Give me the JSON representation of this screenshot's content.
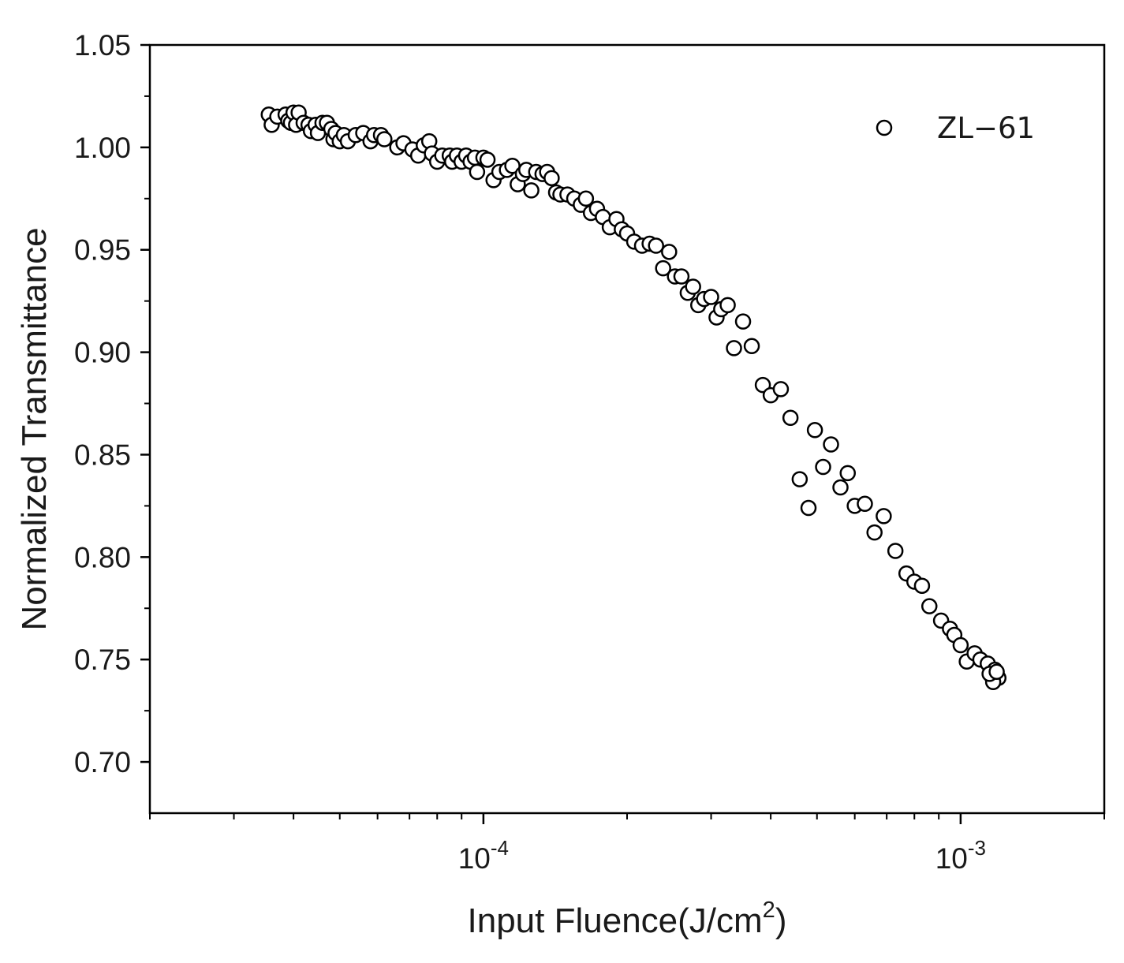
{
  "chart_data": {
    "type": "scatter",
    "xscale": "log",
    "xlim": [
      2e-05,
      0.002
    ],
    "ylim": [
      0.675,
      1.05
    ],
    "xlabel_main": "Input Fluence(J/cm",
    "xlabel_sup": "2",
    "xlabel_end": ")",
    "ylabel": "Normalized Transmittance",
    "y_ticks": [
      "0.70",
      "0.75",
      "0.80",
      "0.85",
      "0.90",
      "0.95",
      "1.00",
      "1.05"
    ],
    "y_tick_values": [
      0.7,
      0.75,
      0.8,
      0.85,
      0.9,
      0.95,
      1.0,
      1.05
    ],
    "x_ticks": [
      {
        "value": 0.0001,
        "base": "10",
        "exp": "-4"
      },
      {
        "value": 0.001,
        "base": "10",
        "exp": "-3"
      }
    ],
    "grid": false,
    "legend_position": "top-right",
    "marker": "open-circle",
    "series": [
      {
        "name": "ZL−61",
        "color": "#000000",
        "points": [
          [
            3.55e-05,
            1.016
          ],
          [
            3.6e-05,
            1.011
          ],
          [
            3.7e-05,
            1.015
          ],
          [
            3.85e-05,
            1.016
          ],
          [
            3.9e-05,
            1.013
          ],
          [
            3.95e-05,
            1.012
          ],
          [
            4e-05,
            1.017
          ],
          [
            4.05e-05,
            1.011
          ],
          [
            4.1e-05,
            1.017
          ],
          [
            4.2e-05,
            1.012
          ],
          [
            4.3e-05,
            1.011
          ],
          [
            4.35e-05,
            1.008
          ],
          [
            4.45e-05,
            1.011
          ],
          [
            4.5e-05,
            1.007
          ],
          [
            4.6e-05,
            1.012
          ],
          [
            4.7e-05,
            1.012
          ],
          [
            4.8e-05,
            1.009
          ],
          [
            4.85e-05,
            1.004
          ],
          [
            4.9e-05,
            1.007
          ],
          [
            5e-05,
            1.003
          ],
          [
            5.1e-05,
            1.006
          ],
          [
            5.2e-05,
            1.003
          ],
          [
            5.4e-05,
            1.006
          ],
          [
            5.6e-05,
            1.007
          ],
          [
            5.8e-05,
            1.003
          ],
          [
            5.9e-05,
            1.006
          ],
          [
            6.1e-05,
            1.006
          ],
          [
            6.2e-05,
            1.004
          ],
          [
            6.6e-05,
            1.0
          ],
          [
            6.8e-05,
            1.002
          ],
          [
            7.1e-05,
            0.999
          ],
          [
            7.3e-05,
            0.996
          ],
          [
            7.5e-05,
            1.001
          ],
          [
            7.7e-05,
            1.003
          ],
          [
            7.8e-05,
            0.997
          ],
          [
            8e-05,
            0.993
          ],
          [
            8.2e-05,
            0.996
          ],
          [
            8.5e-05,
            0.996
          ],
          [
            8.6e-05,
            0.993
          ],
          [
            8.8e-05,
            0.996
          ],
          [
            9e-05,
            0.993
          ],
          [
            9.2e-05,
            0.996
          ],
          [
            9.4e-05,
            0.993
          ],
          [
            9.6e-05,
            0.995
          ],
          [
            9.7e-05,
            0.988
          ],
          [
            0.0001,
            0.995
          ],
          [
            0.000102,
            0.994
          ],
          [
            0.000105,
            0.984
          ],
          [
            0.000108,
            0.988
          ],
          [
            0.000112,
            0.989
          ],
          [
            0.000115,
            0.991
          ],
          [
            0.000118,
            0.982
          ],
          [
            0.000121,
            0.987
          ],
          [
            0.000123,
            0.989
          ],
          [
            0.000126,
            0.979
          ],
          [
            0.000129,
            0.988
          ],
          [
            0.000133,
            0.987
          ],
          [
            0.000136,
            0.988
          ],
          [
            0.000139,
            0.985
          ],
          [
            0.000142,
            0.978
          ],
          [
            0.000145,
            0.977
          ],
          [
            0.00015,
            0.977
          ],
          [
            0.000155,
            0.975
          ],
          [
            0.00016,
            0.972
          ],
          [
            0.000164,
            0.975
          ],
          [
            0.000168,
            0.968
          ],
          [
            0.000173,
            0.97
          ],
          [
            0.000178,
            0.966
          ],
          [
            0.000184,
            0.961
          ],
          [
            0.00019,
            0.965
          ],
          [
            0.000195,
            0.96
          ],
          [
            0.0002,
            0.958
          ],
          [
            0.000207,
            0.954
          ],
          [
            0.000215,
            0.952
          ],
          [
            0.000223,
            0.953
          ],
          [
            0.00023,
            0.952
          ],
          [
            0.000238,
            0.941
          ],
          [
            0.000245,
            0.949
          ],
          [
            0.000252,
            0.937
          ],
          [
            0.00026,
            0.937
          ],
          [
            0.000268,
            0.929
          ],
          [
            0.000275,
            0.932
          ],
          [
            0.000282,
            0.923
          ],
          [
            0.00029,
            0.926
          ],
          [
            0.0003,
            0.927
          ],
          [
            0.000308,
            0.917
          ],
          [
            0.000315,
            0.921
          ],
          [
            0.000325,
            0.923
          ],
          [
            0.000335,
            0.902
          ],
          [
            0.00035,
            0.915
          ],
          [
            0.000365,
            0.903
          ],
          [
            0.000385,
            0.884
          ],
          [
            0.0004,
            0.879
          ],
          [
            0.00042,
            0.882
          ],
          [
            0.00044,
            0.868
          ],
          [
            0.00046,
            0.838
          ],
          [
            0.00048,
            0.824
          ],
          [
            0.000495,
            0.862
          ],
          [
            0.000515,
            0.844
          ],
          [
            0.000535,
            0.855
          ],
          [
            0.00056,
            0.834
          ],
          [
            0.00058,
            0.841
          ],
          [
            0.0006,
            0.825
          ],
          [
            0.00063,
            0.826
          ],
          [
            0.00066,
            0.812
          ],
          [
            0.00069,
            0.82
          ],
          [
            0.00073,
            0.803
          ],
          [
            0.00077,
            0.792
          ],
          [
            0.0008,
            0.788
          ],
          [
            0.00083,
            0.786
          ],
          [
            0.00086,
            0.776
          ],
          [
            0.00091,
            0.769
          ],
          [
            0.00095,
            0.765
          ],
          [
            0.00097,
            0.762
          ],
          [
            0.001,
            0.757
          ],
          [
            0.00103,
            0.749
          ],
          [
            0.00107,
            0.753
          ],
          [
            0.0011,
            0.75
          ],
          [
            0.00114,
            0.748
          ],
          [
            0.00116,
            0.742
          ],
          [
            0.00118,
            0.745
          ],
          [
            0.0012,
            0.741
          ],
          [
            0.00117,
            0.739
          ],
          [
            0.00115,
            0.743
          ],
          [
            0.00119,
            0.744
          ]
        ]
      }
    ]
  }
}
